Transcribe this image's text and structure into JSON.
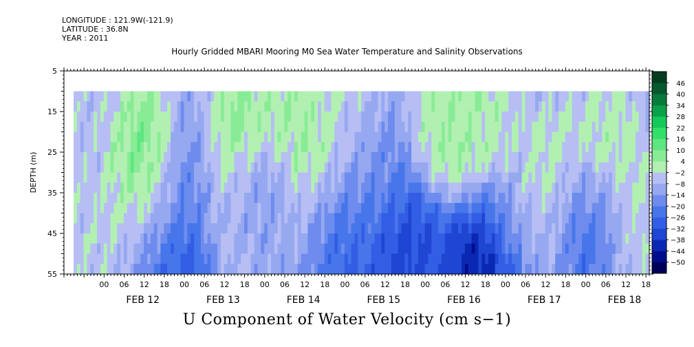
{
  "header": {
    "longitude": "LONGITUDE : 121.9W(-121.9)",
    "latitude": "LATITUDE : 36.8N",
    "year": "YEAR : 2011"
  },
  "chart_data": {
    "type": "heatmap",
    "title": "Hourly Gridded MBARI Mooring M0 Sea Water Temperature and Salinity Observations",
    "footer_label": "U Component of Water Velocity (cm s−1)",
    "ylabel": "DEPTH (m)",
    "y_axis": {
      "min": 5,
      "max": 55,
      "inverted": true,
      "ticks": [
        5,
        15,
        25,
        35,
        45,
        55
      ],
      "data_depth_range": [
        10,
        55
      ]
    },
    "x_axis": {
      "start": "2011-02-11T12:00",
      "end": "2011-02-18T19:00",
      "data_start": "2011-02-11T15:00",
      "data_end": "2011-02-18T18:00",
      "hour_tick_labels": [
        "00",
        "06",
        "12",
        "18",
        "00",
        "06",
        "12",
        "18",
        "00",
        "06",
        "12",
        "18",
        "00",
        "06",
        "12",
        "18",
        "00",
        "06",
        "12",
        "18",
        "00",
        "06",
        "12",
        "18",
        "00",
        "06",
        "12",
        "18"
      ],
      "day_labels": [
        "FEB 12",
        "FEB 13",
        "FEB 14",
        "FEB 15",
        "FEB 16",
        "FEB 17",
        "FEB 18"
      ]
    },
    "colorbar": {
      "levels": [
        -50,
        -44,
        -38,
        -32,
        -26,
        -20,
        -14,
        -8,
        -2,
        4,
        10,
        16,
        22,
        28,
        34,
        40,
        46
      ],
      "tick_labels": [
        "46",
        "40",
        "34",
        "28",
        "22",
        "16",
        "10",
        "4",
        "−2",
        "−8",
        "−14",
        "−20",
        "−26",
        "−32",
        "−38",
        "−44",
        "−50"
      ],
      "colors": [
        "#00005a",
        "#000c8c",
        "#0a28b4",
        "#1e46d2",
        "#325ee6",
        "#4676ea",
        "#6e8cee",
        "#96a8f0",
        "#b6bef4",
        "#b2f0b2",
        "#88ec96",
        "#5ee680",
        "#32e06a",
        "#14c85a",
        "#0aa04a",
        "#087a3c",
        "#06582e",
        "#043c20"
      ]
    },
    "features": [
      {
        "time": "2011-02-11T17:00",
        "depth": 15,
        "value": 2
      },
      {
        "time": "2011-02-11T20:00",
        "depth": 45,
        "value": 4
      },
      {
        "time": "2011-02-12T12:00",
        "depth": 25,
        "value": 18
      },
      {
        "time": "2011-02-12T14:00",
        "depth": 45,
        "value": 8
      },
      {
        "time": "2011-02-12T19:00",
        "depth": 52,
        "value": -34
      },
      {
        "time": "2011-02-13T02:00",
        "depth": 30,
        "value": -18
      },
      {
        "time": "2011-02-13T14:00",
        "depth": 25,
        "value": 22
      },
      {
        "time": "2011-02-13T17:00",
        "depth": 40,
        "value": 6
      },
      {
        "time": "2011-02-13T21:00",
        "depth": 35,
        "value": -22
      },
      {
        "time": "2011-02-14T05:00",
        "depth": 20,
        "value": 12
      },
      {
        "time": "2011-02-14T11:00",
        "depth": 40,
        "value": 4
      },
      {
        "time": "2011-02-14T15:00",
        "depth": 25,
        "value": 12
      },
      {
        "time": "2011-02-14T20:00",
        "depth": 45,
        "value": -24
      },
      {
        "time": "2011-02-15T00:00",
        "depth": 15,
        "value": 4
      },
      {
        "time": "2011-02-15T06:00",
        "depth": 30,
        "value": -12
      },
      {
        "time": "2011-02-15T18:00",
        "depth": 50,
        "value": -30
      },
      {
        "time": "2011-02-16T08:00",
        "depth": 18,
        "value": 12
      },
      {
        "time": "2011-02-16T16:00",
        "depth": 18,
        "value": 8
      },
      {
        "time": "2011-02-16T19:00",
        "depth": 52,
        "value": -46
      },
      {
        "time": "2011-02-17T02:00",
        "depth": 45,
        "value": -14
      },
      {
        "time": "2011-02-17T06:00",
        "depth": 42,
        "value": 10
      },
      {
        "time": "2011-02-17T15:00",
        "depth": 30,
        "value": 10
      },
      {
        "time": "2011-02-17T23:00",
        "depth": 40,
        "value": -22
      },
      {
        "time": "2011-02-18T06:00",
        "depth": 25,
        "value": 10
      },
      {
        "time": "2011-02-18T16:00",
        "depth": 40,
        "value": 6
      }
    ]
  }
}
